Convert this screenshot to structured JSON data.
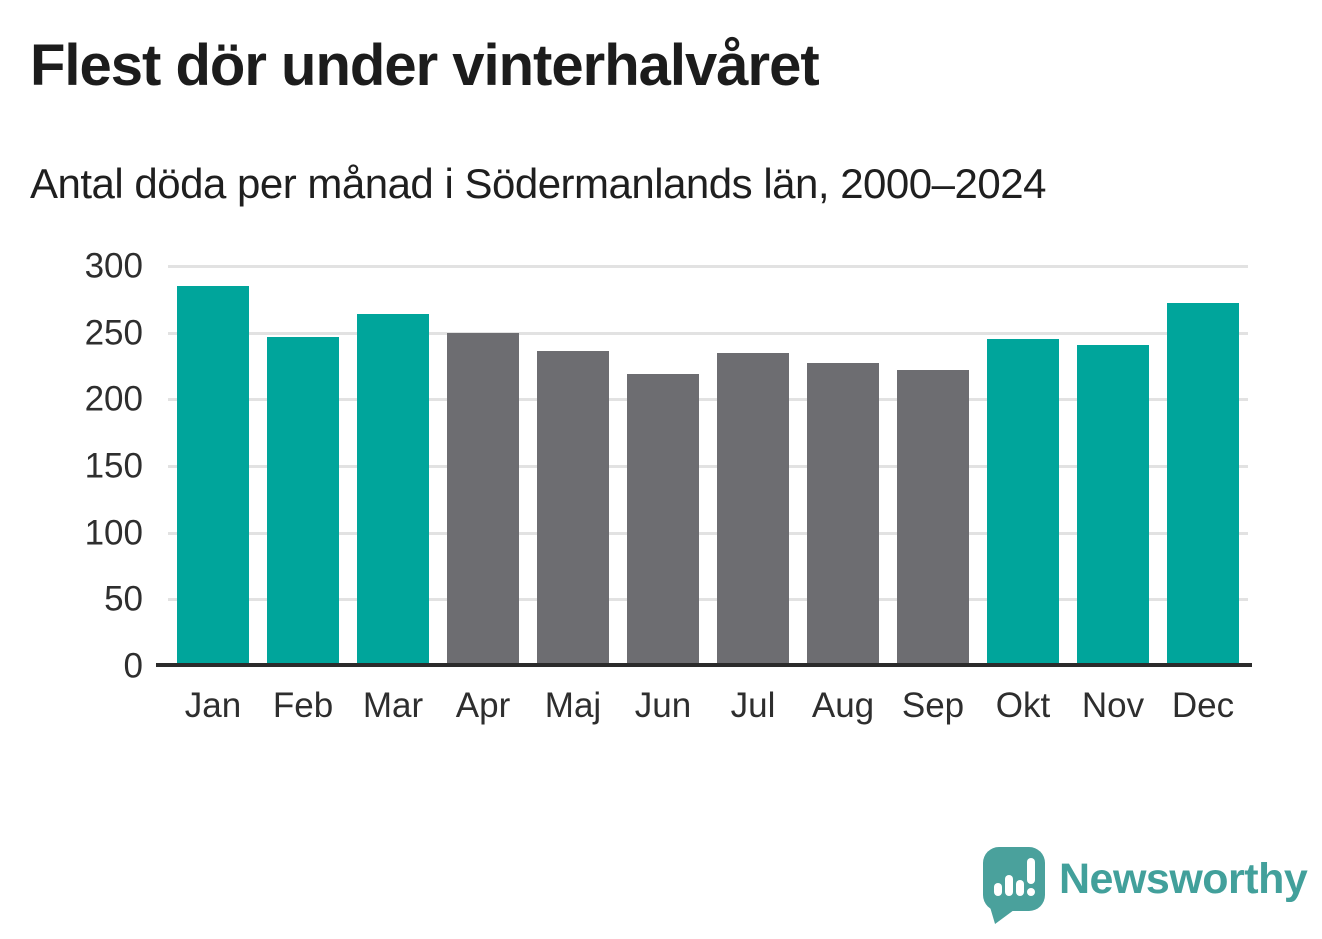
{
  "header": {
    "title": "Flest dör under vinterhalvåret",
    "subtitle": "Antal döda per månad i Södermanlands län, 2000–2024"
  },
  "chart_data": {
    "type": "bar",
    "title": "Flest dör under vinterhalvåret",
    "subtitle": "Antal döda per månad i Södermanlands län, 2000–2024",
    "categories": [
      "Jan",
      "Feb",
      "Mar",
      "Apr",
      "Maj",
      "Jun",
      "Jul",
      "Aug",
      "Sep",
      "Okt",
      "Nov",
      "Dec"
    ],
    "values": [
      285,
      247,
      264,
      250,
      236,
      219,
      235,
      227,
      222,
      245,
      241,
      272
    ],
    "bar_seasons": [
      "winter",
      "winter",
      "winter",
      "summer",
      "summer",
      "summer",
      "summer",
      "summer",
      "summer",
      "winter",
      "winter",
      "winter"
    ],
    "ylim": [
      0,
      300
    ],
    "yticks": [
      0,
      50,
      100,
      150,
      200,
      250,
      300
    ],
    "xlabel": "",
    "ylabel": "",
    "grid": "horizontal",
    "legend": "none",
    "colors": {
      "winter_bar": "#00a59b",
      "summer_bar": "#6d6d71",
      "gridline": "#e2e2e2",
      "axis_line": "#2b2b2b",
      "tick_text": "#2e2e2e"
    }
  },
  "footer": {
    "brand": "Newsworthy",
    "logo_icon": "newsworthy-speech-bubble-bar-chart-icon",
    "brand_color": "#42a09b"
  }
}
